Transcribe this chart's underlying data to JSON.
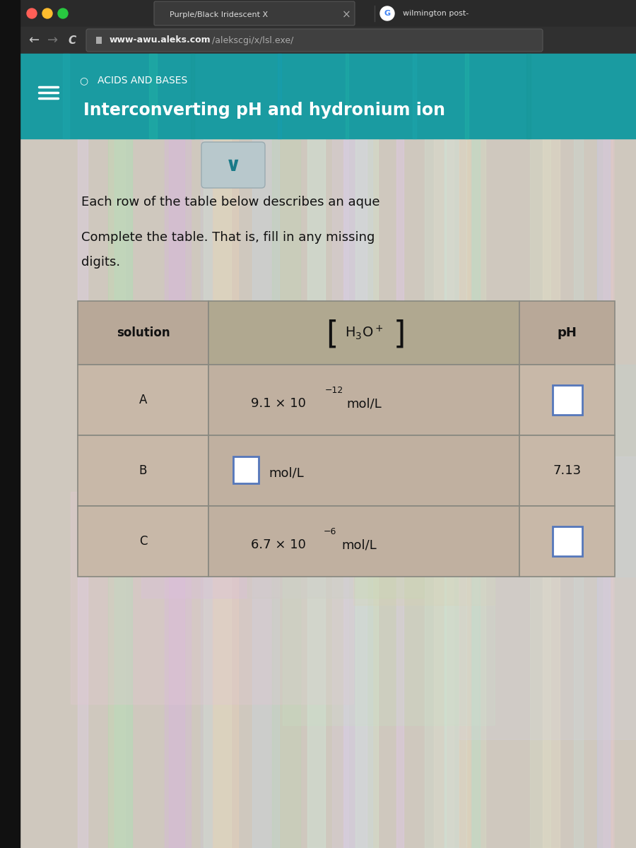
{
  "browser_bar_bg": "#1a1a1a",
  "browser_tab_text": "Purple/Black Iridescent X",
  "browser_tab2_text": "wilmington post-",
  "url_text": "www-awu.aleks.com/alekscgi/x/lsl.exe/",
  "url_bold": "www-awu.aleks.com",
  "url_rest": "/alekscgi/x/lsl.exe/",
  "header_bg_top": "#1a9ba1",
  "header_bg_bottom": "#1488a0",
  "header_subtitle": "ACIDS AND BASES",
  "header_title": "Interconverting pH and hydronium ion",
  "body_bg": "#cfc8be",
  "para1": "Each row of the table below describes an aque",
  "para2_line1": "Complete the table. That is, fill in any missing",
  "para2_line2": "digits.",
  "cell_text": "#111111",
  "input_box_color": "#5577bb",
  "table_bg_header": "#b8a898",
  "table_bg_data": "#c0b0a0",
  "table_border": "#888880",
  "left_sidebar_color": "#5a5a5a",
  "chevron_bg": "#b8c8cc",
  "chevron_color": "#1a7a88"
}
